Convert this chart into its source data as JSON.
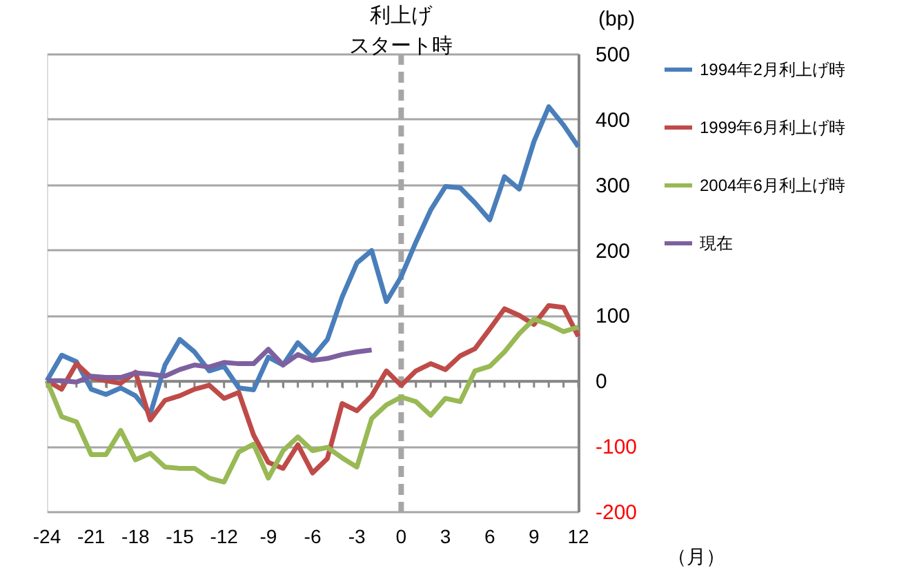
{
  "chart_data": {
    "type": "line",
    "x": [
      -24,
      -23,
      -22,
      -21,
      -20,
      -19,
      -18,
      -17,
      -16,
      -15,
      -14,
      -13,
      -12,
      -11,
      -10,
      -9,
      -8,
      -7,
      -6,
      -5,
      -4,
      -3,
      -2,
      -1,
      0,
      1,
      2,
      3,
      4,
      5,
      6,
      7,
      8,
      9,
      10,
      11,
      12
    ],
    "series": [
      {
        "name": "1994年2月利上げ時",
        "color": "#4a7ebb",
        "values": [
          0,
          39,
          29,
          -13,
          -21,
          -11,
          -23,
          -51,
          24,
          63,
          44,
          15,
          22,
          -11,
          -14,
          36,
          24,
          58,
          36,
          63,
          128,
          180,
          199,
          121,
          159,
          212,
          261,
          297,
          295,
          272,
          246,
          312,
          293,
          366,
          419,
          391,
          358
        ]
      },
      {
        "name": "1999年6月利上げ時",
        "color": "#be4b48",
        "values": [
          0,
          -13,
          26,
          5,
          0,
          -4,
          13,
          -60,
          -30,
          -23,
          -13,
          -7,
          -27,
          -18,
          -83,
          -125,
          -134,
          -98,
          -141,
          -119,
          -35,
          -46,
          -23,
          15,
          -7,
          15,
          26,
          17,
          38,
          49,
          79,
          110,
          100,
          86,
          115,
          112,
          68
        ]
      },
      {
        "name": "2004年6月利上げ時",
        "color": "#98b954",
        "values": [
          0,
          -55,
          -63,
          -113,
          -113,
          -76,
          -121,
          -111,
          -132,
          -134,
          -134,
          -149,
          -155,
          -109,
          -97,
          -149,
          -107,
          -86,
          -107,
          -102,
          -118,
          -132,
          -58,
          -37,
          -25,
          -32,
          -53,
          -27,
          -32,
          15,
          22,
          44,
          72,
          94,
          86,
          75,
          82
        ]
      },
      {
        "name": "現在",
        "color": "#7d60a0",
        "values": [
          0,
          0,
          -2,
          7,
          5,
          5,
          12,
          10,
          7,
          17,
          24,
          21,
          28,
          26,
          26,
          48,
          24,
          40,
          31,
          34,
          40,
          44,
          47,
          null,
          null,
          null,
          null,
          null,
          null,
          null,
          null,
          null,
          null,
          null,
          null,
          null,
          null
        ]
      }
    ],
    "xlim": [
      -24,
      12
    ],
    "xticks": [
      -24,
      {
        "value": -23,
        "label": null
      },
      {
        "value": -22,
        "label": null
      },
      -21,
      {
        "value": -20,
        "label": null
      },
      {
        "value": -19,
        "label": null
      },
      -18,
      {
        "value": -17,
        "label": null
      },
      {
        "value": -16,
        "label": null
      },
      -15,
      {
        "value": -14,
        "label": null
      },
      {
        "value": -13,
        "label": null
      },
      -12,
      {
        "value": -11,
        "label": null
      },
      {
        "value": -10,
        "label": null
      },
      -9,
      {
        "value": -8,
        "label": null
      },
      {
        "value": -7,
        "label": null
      },
      -6,
      {
        "value": -5,
        "label": null
      },
      {
        "value": -4,
        "label": null
      },
      -3,
      {
        "value": -2,
        "label": null
      },
      {
        "value": -1,
        "label": null
      },
      0,
      {
        "value": 1,
        "label": null
      },
      {
        "value": 2,
        "label": null
      },
      3,
      {
        "value": 4,
        "label": null
      },
      {
        "value": 5,
        "label": null
      },
      6,
      {
        "value": 7,
        "label": null
      },
      {
        "value": 8,
        "label": null
      },
      9,
      {
        "value": 10,
        "label": null
      },
      {
        "value": 11,
        "label": null
      },
      12
    ],
    "ylim": [
      -200,
      500
    ],
    "yticks": [
      -200,
      -100,
      0,
      100,
      200,
      300,
      400,
      500
    ],
    "ylabel": "(bp)",
    "xlabel": "（月）",
    "ref_lines": [
      {
        "axis": "x",
        "value": 0,
        "color": "#a6a6a6",
        "line_style": "dashed"
      }
    ],
    "annotations": [
      "利上げ",
      "スタート時"
    ],
    "grid": "y",
    "legend": "right",
    "marker": "none",
    "line_style": "solid"
  }
}
